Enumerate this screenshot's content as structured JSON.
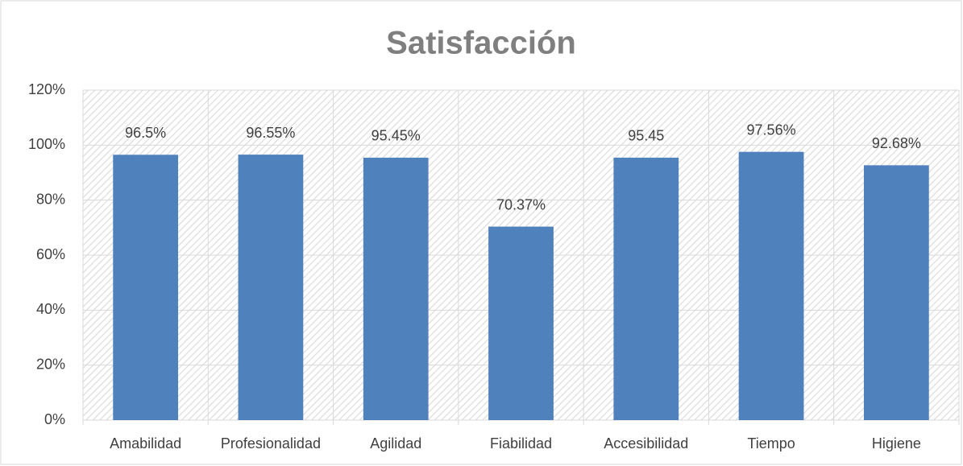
{
  "chart_data": {
    "type": "bar",
    "title": "Satisfacción",
    "categories": [
      "Amabilidad",
      "Profesionalidad",
      "Agilidad",
      "Fiabilidad",
      "Accesibilidad",
      "Tiempo",
      "Higiene"
    ],
    "values": [
      96.5,
      96.55,
      95.45,
      70.37,
      95.45,
      97.56,
      92.68
    ],
    "value_labels": [
      "96.5%",
      "96.55%",
      "95.45%",
      "70.37%",
      "95.45",
      "97.56%",
      "92.68%"
    ],
    "color": "#4f81bd",
    "ylim": [
      0,
      120
    ],
    "yticks": [
      {
        "value": 0,
        "label": "0%"
      },
      {
        "value": 20,
        "label": "20%"
      },
      {
        "value": 40,
        "label": "40%"
      },
      {
        "value": 60,
        "label": "60%"
      },
      {
        "value": 80,
        "label": "80%"
      },
      {
        "value": 100,
        "label": "100%"
      },
      {
        "value": 120,
        "label": "120%"
      }
    ],
    "grid": true
  }
}
